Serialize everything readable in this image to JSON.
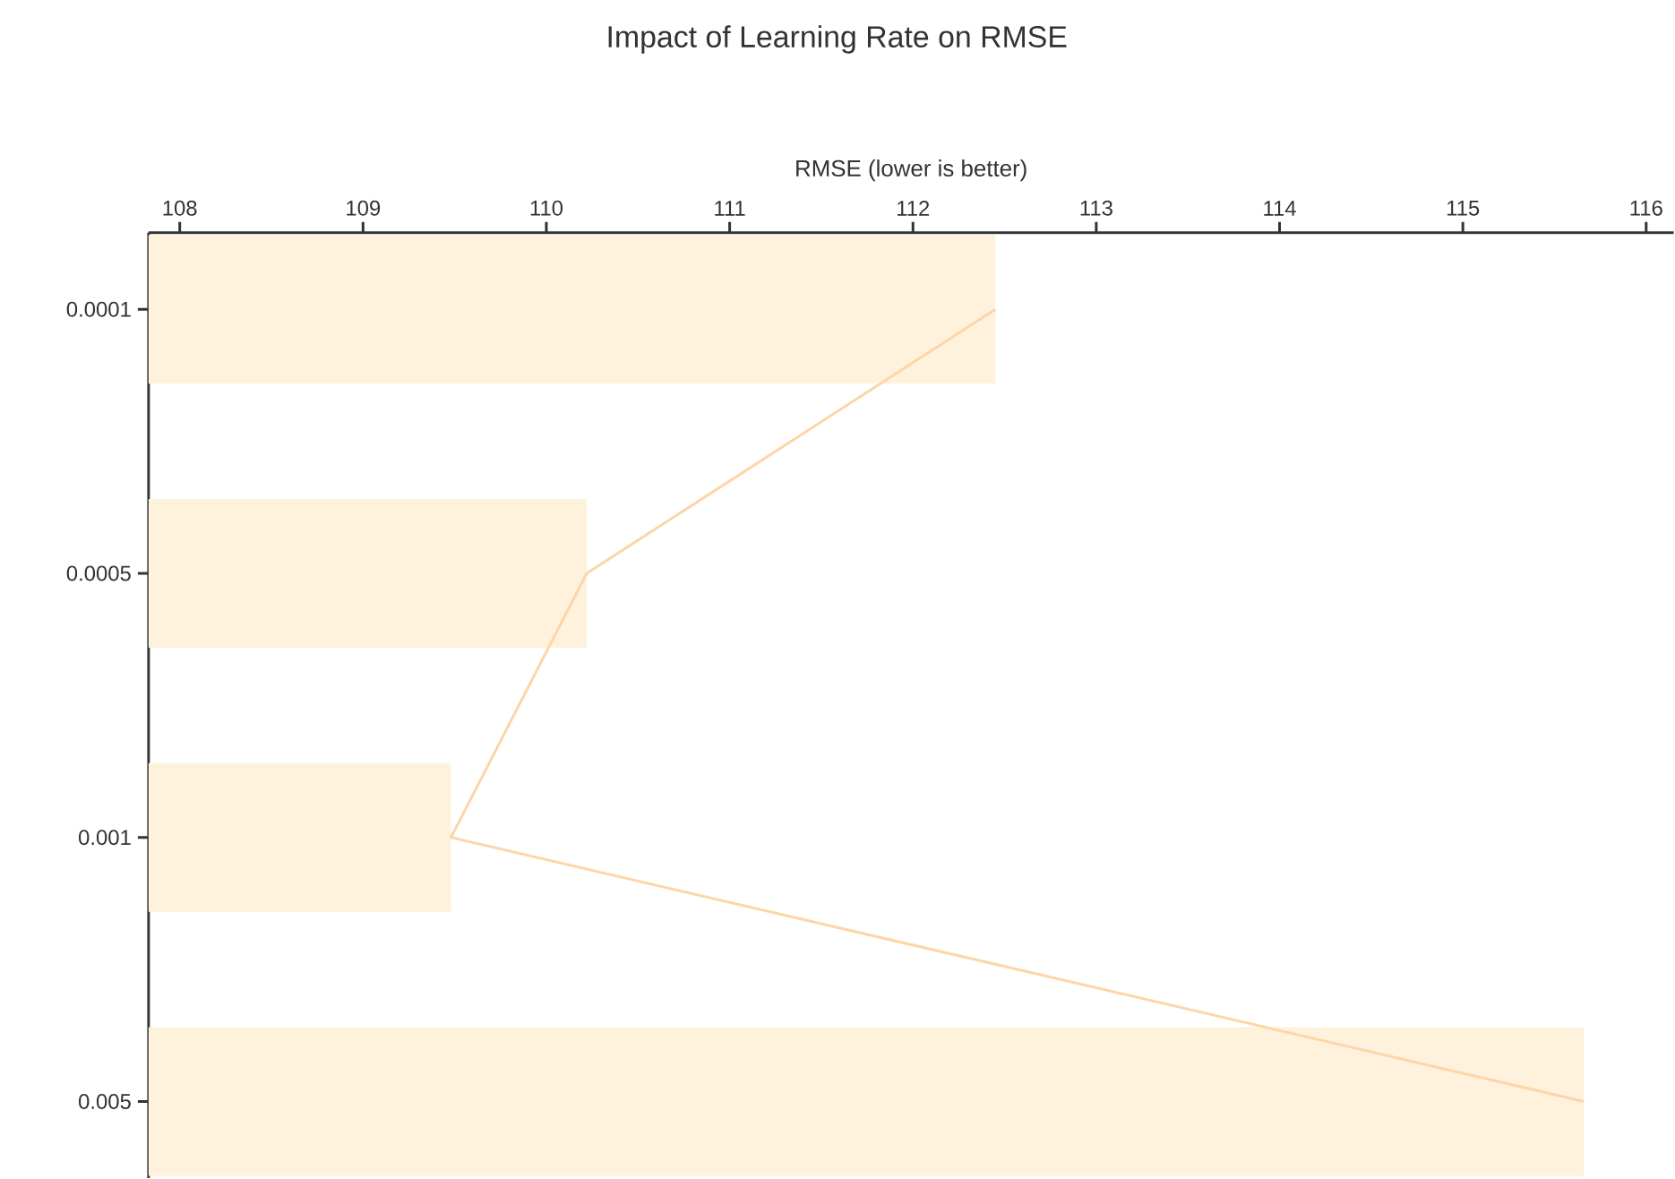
{
  "chart_data": {
    "type": "bar",
    "orientation": "horizontal",
    "title": "Impact of Learning Rate on RMSE",
    "xlabel": "RMSE (lower is better)",
    "categories": [
      "0.0001",
      "0.0005",
      "0.001",
      "0.005"
    ],
    "series": [
      {
        "color": "#fff2dc",
        "values": [
          112.45,
          110.22,
          109.48,
          115.66
        ]
      },
      {
        "type": "line",
        "color": "#fdd5a8",
        "values": [
          112.45,
          110.22,
          109.48,
          115.66
        ]
      }
    ],
    "xlim": [
      107.83,
      116.15
    ],
    "xticks": [
      108,
      109,
      110,
      111,
      112,
      113,
      114,
      115,
      116
    ]
  }
}
